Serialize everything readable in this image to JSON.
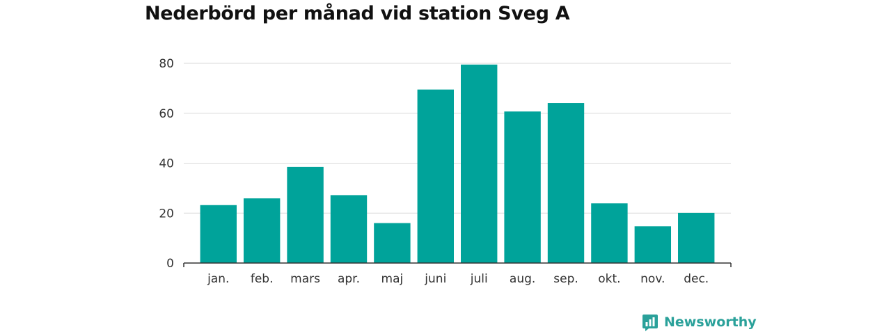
{
  "title": "Nederbörd per månad vid station Sveg A",
  "brand": {
    "name": "Newsworthy",
    "icon": "bar-chart-icon",
    "color": "#2aa19a"
  },
  "chart_data": {
    "type": "bar",
    "categories": [
      "jan.",
      "feb.",
      "mars",
      "apr.",
      "maj",
      "juni",
      "juli",
      "aug.",
      "sep.",
      "okt.",
      "nov.",
      "dec."
    ],
    "values": [
      23.2,
      25.9,
      38.5,
      27.2,
      16.0,
      69.5,
      79.5,
      60.7,
      64.1,
      23.9,
      14.7,
      20.1
    ],
    "ylim": [
      0,
      80
    ],
    "yticks": [
      0,
      20,
      40,
      60,
      80
    ],
    "grid": true,
    "bar_color": "#00a39a",
    "xlabel": "",
    "ylabel": ""
  }
}
